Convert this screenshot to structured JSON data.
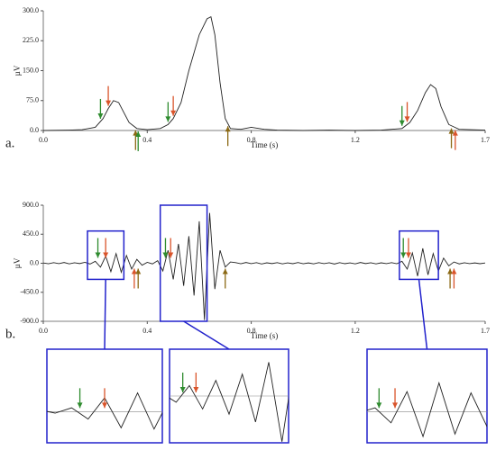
{
  "chart_data": [
    {
      "type": "line",
      "panel_label": "a.",
      "x_label": "Time (s)",
      "y_label": "µV",
      "color": "#222222",
      "x": [
        0,
        0.1,
        0.15,
        0.2,
        0.23,
        0.25,
        0.27,
        0.29,
        0.31,
        0.33,
        0.36,
        0.4,
        0.45,
        0.48,
        0.5,
        0.53,
        0.56,
        0.6,
        0.63,
        0.645,
        0.66,
        0.68,
        0.7,
        0.72,
        0.76,
        0.8,
        0.85,
        0.9,
        1.0,
        1.1,
        1.2,
        1.3,
        1.38,
        1.41,
        1.44,
        1.47,
        1.49,
        1.51,
        1.53,
        1.56,
        1.6,
        1.7
      ],
      "values": [
        0,
        1,
        2,
        8,
        30,
        55,
        75,
        70,
        45,
        20,
        5,
        2,
        5,
        15,
        30,
        70,
        150,
        240,
        280,
        285,
        240,
        120,
        30,
        5,
        3,
        8,
        3,
        1,
        0,
        1,
        0,
        1,
        5,
        20,
        50,
        95,
        115,
        105,
        60,
        15,
        3,
        1
      ],
      "xlim": [
        0,
        1.7
      ],
      "ylim": [
        0,
        300
      ],
      "xticks": [
        {
          "value": 0,
          "label": "0.0"
        },
        0.4,
        0.8,
        1.2,
        1.7
      ],
      "yticks": [
        {
          "value": 0,
          "label": "0.0"
        },
        {
          "value": 75,
          "label": "75.0"
        },
        {
          "value": 150,
          "label": "150.0"
        },
        {
          "value": 225,
          "label": "225.0"
        },
        {
          "value": 300,
          "label": "300.0"
        }
      ],
      "arrows": [
        {
          "x": 0.22,
          "color": "#2e8b2e",
          "direction": "down"
        },
        {
          "x": 0.25,
          "color": "#d9542b",
          "direction": "down"
        },
        {
          "x": 0.355,
          "color": "#8b6914",
          "direction": "up"
        },
        {
          "x": 0.365,
          "color": "#2e8b2e",
          "direction": "up"
        },
        {
          "x": 0.48,
          "color": "#2e8b2e",
          "direction": "down"
        },
        {
          "x": 0.5,
          "color": "#d9542b",
          "direction": "down"
        },
        {
          "x": 0.71,
          "color": "#8b6914",
          "direction": "up"
        },
        {
          "x": 1.38,
          "color": "#2e8b2e",
          "direction": "down"
        },
        {
          "x": 1.4,
          "color": "#d9542b",
          "direction": "down"
        },
        {
          "x": 1.57,
          "color": "#8b6914",
          "direction": "up"
        },
        {
          "x": 1.585,
          "color": "#d9542b",
          "direction": "up"
        }
      ]
    },
    {
      "type": "line",
      "panel_label": "b.",
      "x_label": "Time (s)",
      "y_label": "µV",
      "color": "#222222",
      "x": [
        0,
        0.02,
        0.04,
        0.06,
        0.08,
        0.1,
        0.12,
        0.14,
        0.16,
        0.18,
        0.2,
        0.22,
        0.24,
        0.26,
        0.28,
        0.3,
        0.32,
        0.34,
        0.36,
        0.38,
        0.4,
        0.42,
        0.44,
        0.46,
        0.48,
        0.5,
        0.52,
        0.54,
        0.56,
        0.58,
        0.6,
        0.62,
        0.64,
        0.66,
        0.68,
        0.7,
        0.72,
        0.74,
        0.76,
        0.78,
        0.8,
        0.82,
        0.84,
        0.86,
        0.88,
        0.9,
        0.92,
        0.94,
        0.96,
        0.98,
        1.0,
        1.02,
        1.04,
        1.06,
        1.08,
        1.1,
        1.12,
        1.14,
        1.16,
        1.18,
        1.2,
        1.22,
        1.24,
        1.26,
        1.28,
        1.3,
        1.32,
        1.34,
        1.36,
        1.38,
        1.4,
        1.42,
        1.44,
        1.46,
        1.48,
        1.5,
        1.52,
        1.54,
        1.56,
        1.58,
        1.6,
        1.62,
        1.64,
        1.66,
        1.68,
        1.7
      ],
      "values": [
        5,
        -8,
        10,
        -6,
        12,
        -10,
        8,
        -5,
        15,
        -12,
        30,
        -60,
        110,
        -130,
        150,
        -140,
        120,
        -90,
        60,
        -30,
        15,
        -10,
        40,
        -120,
        200,
        -250,
        300,
        -350,
        420,
        -500,
        650,
        -880,
        780,
        -400,
        200,
        -60,
        20,
        10,
        -8,
        12,
        -6,
        9,
        -11,
        7,
        -5,
        10,
        -9,
        6,
        -7,
        11,
        -8,
        5,
        -10,
        9,
        -6,
        8,
        -12,
        10,
        -7,
        6,
        -9,
        12,
        -5,
        8,
        -10,
        7,
        -6,
        9,
        -8,
        30,
        -90,
        160,
        -200,
        230,
        -180,
        150,
        -120,
        80,
        -40,
        20,
        -10,
        8,
        -6,
        5,
        -7,
        4
      ],
      "xlim": [
        0,
        1.7
      ],
      "ylim": [
        -900,
        900
      ],
      "xticks": [
        {
          "value": 0,
          "label": "0.0"
        },
        0.4,
        0.8,
        1.2,
        1.7
      ],
      "yticks": [
        {
          "value": -900,
          "label": "-900.0"
        },
        {
          "value": -450,
          "label": "-450.0"
        },
        {
          "value": 0,
          "label": "0.0"
        },
        {
          "value": 450,
          "label": "450.0"
        },
        {
          "value": 900,
          "label": "900.0"
        }
      ],
      "arrows": [
        {
          "x": 0.21,
          "color": "#2e8b2e",
          "direction": "down"
        },
        {
          "x": 0.24,
          "color": "#d9542b",
          "direction": "down"
        },
        {
          "x": 0.35,
          "color": "#d9542b",
          "direction": "up"
        },
        {
          "x": 0.365,
          "color": "#8b6914",
          "direction": "up"
        },
        {
          "x": 0.47,
          "color": "#2e8b2e",
          "direction": "down"
        },
        {
          "x": 0.49,
          "color": "#d9542b",
          "direction": "down"
        },
        {
          "x": 0.7,
          "color": "#8b6914",
          "direction": "up"
        },
        {
          "x": 1.385,
          "color": "#2e8b2e",
          "direction": "down"
        },
        {
          "x": 1.405,
          "color": "#d9542b",
          "direction": "down"
        },
        {
          "x": 1.565,
          "color": "#8b6914",
          "direction": "up"
        },
        {
          "x": 1.58,
          "color": "#d9542b",
          "direction": "up"
        }
      ],
      "zooms": [
        {
          "xlim": [
            0.17,
            0.31
          ],
          "ylim": [
            -250,
            500
          ]
        },
        {
          "xlim": [
            0.45,
            0.63
          ],
          "ylim": [
            -900,
            900
          ]
        },
        {
          "xlim": [
            1.37,
            1.52
          ],
          "ylim": [
            -250,
            500
          ]
        }
      ]
    }
  ]
}
